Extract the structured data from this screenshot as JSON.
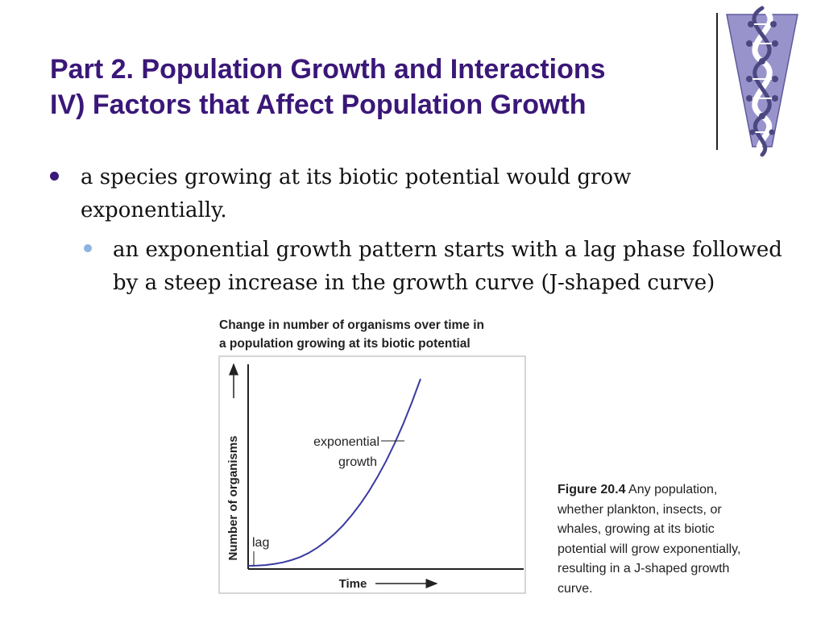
{
  "slide": {
    "title_line1": "Part 2. Population Growth and Interactions",
    "title_line2": "IV) Factors that Affect Population Growth"
  },
  "bullets": [
    {
      "level": 1,
      "text": "a species growing at its biotic potential would grow exponentially."
    },
    {
      "level": 2,
      "text": "an exponential growth pattern starts with a lag phase followed by a steep increase in the growth curve (J-shaped curve)"
    }
  ],
  "figure": {
    "number_label": "Figure 20.4",
    "caption_text": "Any population, whether plankton, insects, or whales, growing at its biotic potential will grow exponentially, resulting in a J-shaped growth curve."
  },
  "logo": {
    "icon": "dna-double-helix-icon",
    "color": "#8b85c1"
  },
  "colors": {
    "title": "#3a1778",
    "curve": "#3a3aa0",
    "bullet1": "#3a1778",
    "bullet2": "#8db3e2"
  },
  "chart_data": {
    "type": "line",
    "title_line1": "Change in number of organisms over time in",
    "title_line2": "a population growing at its biotic potential",
    "xlabel": "Time",
    "ylabel": "Number of organisms",
    "annotations": [
      {
        "text_line1": "exponential",
        "text_line2": "growth"
      },
      {
        "text": "lag"
      }
    ],
    "grid": false,
    "series": [
      {
        "x": [
          0,
          0.05,
          0.1,
          0.15,
          0.2,
          0.25,
          0.3,
          0.35,
          0.4,
          0.45,
          0.5,
          0.55,
          0.6,
          0.65,
          0.7,
          0.75,
          0.8,
          0.85,
          0.9,
          0.95,
          1.0
        ],
        "y": [
          0.0,
          0.001,
          0.004,
          0.01,
          0.018,
          0.03,
          0.046,
          0.068,
          0.096,
          0.13,
          0.17,
          0.216,
          0.27,
          0.33,
          0.398,
          0.475,
          0.56,
          0.655,
          0.76,
          0.875,
          1.0
        ]
      }
    ]
  }
}
